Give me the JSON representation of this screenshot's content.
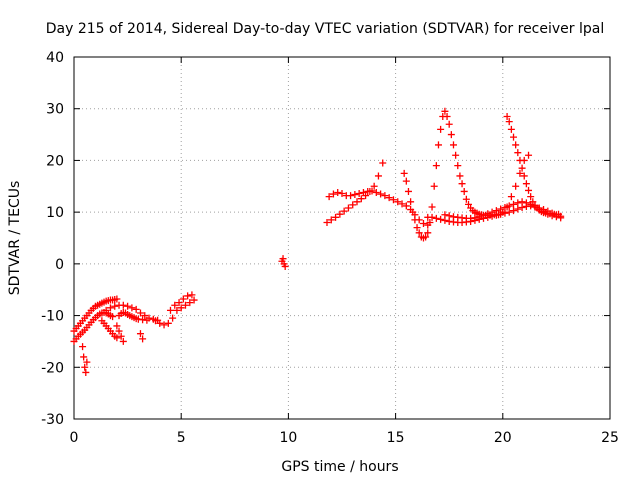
{
  "chart_data": {
    "type": "scatter",
    "title": "Day 215 of 2014, Sidereal Day-to-day VTEC variation (SDTVAR) for receiver lpal",
    "xlabel": "GPS time / hours",
    "ylabel": "SDTVAR / TECUs",
    "xlim": [
      0,
      25
    ],
    "ylim": [
      -30,
      40
    ],
    "xticks": [
      "0",
      "5",
      "10",
      "15",
      "20",
      "25"
    ],
    "yticks": [
      "-30",
      "-20",
      "-10",
      "0",
      "10",
      "20",
      "30",
      "40"
    ],
    "grid": true,
    "marker": "plus",
    "color": "#ff0000",
    "series": [
      {
        "name": "SDTVAR",
        "x": [
          0.0,
          0.1,
          0.2,
          0.3,
          0.4,
          0.5,
          0.6,
          0.7,
          0.8,
          0.9,
          1.0,
          1.1,
          1.2,
          1.3,
          1.4,
          1.5,
          1.6,
          1.7,
          1.8,
          1.9,
          2.0,
          0.0,
          0.1,
          0.2,
          0.3,
          0.4,
          0.5,
          0.6,
          0.7,
          0.8,
          0.9,
          1.0,
          1.1,
          1.2,
          1.3,
          1.4,
          1.5,
          1.6,
          1.7,
          1.8,
          1.3,
          1.4,
          1.5,
          1.6,
          1.7,
          1.8,
          1.9,
          2.0,
          2.1,
          2.2,
          2.3,
          2.4,
          2.5,
          2.6,
          2.7,
          2.8,
          2.9,
          3.0,
          3.2,
          3.4,
          1.5,
          1.7,
          1.9,
          2.1,
          2.3,
          2.5,
          2.7,
          2.9,
          3.1,
          3.3,
          3.5,
          3.7,
          3.9,
          0.4,
          0.45,
          0.5,
          0.55,
          0.6,
          2.0,
          2.1,
          2.2,
          2.3,
          3.1,
          3.2,
          3.8,
          4.0,
          4.2,
          4.4,
          4.6,
          4.8,
          5.0,
          5.2,
          5.4,
          5.6,
          4.5,
          4.7,
          4.9,
          5.1,
          5.3,
          5.5,
          9.7,
          9.75,
          9.8,
          9.85,
          11.8,
          12.0,
          12.2,
          12.4,
          12.6,
          12.8,
          13.0,
          13.2,
          13.4,
          13.6,
          13.8,
          14.0,
          14.2,
          14.4,
          11.9,
          12.1,
          12.3,
          12.5,
          12.7,
          12.9,
          13.1,
          13.3,
          13.5,
          13.7,
          13.9,
          14.1,
          14.3,
          14.5,
          14.7,
          14.9,
          15.1,
          15.3,
          15.5,
          15.7,
          15.9,
          16.1,
          16.3,
          16.5,
          15.4,
          15.5,
          15.6,
          15.7,
          15.8,
          15.9,
          16.0,
          16.1,
          16.2,
          16.3,
          16.4,
          16.5,
          16.6,
          16.7,
          16.8,
          16.9,
          17.0,
          17.1,
          17.2,
          17.3,
          17.4,
          17.5,
          17.6,
          17.7,
          17.8,
          17.9,
          18.0,
          18.1,
          18.2,
          18.3,
          18.4,
          18.5,
          18.6,
          18.7,
          18.8,
          18.9,
          19.0,
          19.2,
          19.4,
          19.6,
          19.8,
          20.0,
          16.5,
          16.7,
          16.9,
          17.1,
          17.3,
          17.5,
          17.7,
          17.9,
          18.1,
          18.3,
          18.5,
          18.7,
          18.9,
          19.1,
          19.3,
          19.5,
          19.7,
          19.9,
          20.1,
          20.3,
          20.5,
          20.7,
          20.9,
          21.1,
          21.3,
          21.5,
          21.7,
          21.9,
          22.1,
          22.3,
          22.5,
          22.7,
          17.3,
          17.5,
          17.7,
          17.9,
          18.1,
          18.3,
          18.5,
          18.7,
          18.9,
          19.1,
          19.3,
          19.5,
          19.7,
          19.9,
          20.1,
          20.3,
          20.5,
          20.7,
          20.9,
          21.1,
          21.3,
          21.5,
          21.7,
          21.9,
          22.1,
          22.3,
          22.5,
          22.7,
          20.2,
          20.3,
          20.4,
          20.5,
          20.6,
          20.7,
          20.8,
          20.9,
          21.0,
          21.1,
          21.2,
          21.3,
          21.4,
          21.5,
          21.6,
          21.7,
          21.8,
          21.9,
          22.0,
          22.2,
          22.4,
          22.6,
          19.8,
          20.0,
          20.2,
          20.4,
          20.6,
          20.8,
          21.0,
          21.2
        ],
        "y": [
          -13,
          -12.5,
          -12,
          -11.5,
          -11,
          -10.5,
          -10,
          -9.5,
          -9,
          -8.6,
          -8.2,
          -8,
          -7.8,
          -7.6,
          -7.4,
          -7.2,
          -7.1,
          -7,
          -7,
          -6.9,
          -6.8,
          -15,
          -14.5,
          -14,
          -13.6,
          -13.2,
          -12.8,
          -12.3,
          -11.8,
          -11.3,
          -10.8,
          -10.4,
          -10,
          -9.7,
          -9.5,
          -9.4,
          -9.5,
          -9.7,
          -10,
          -10.2,
          -11,
          -11.5,
          -12,
          -12.5,
          -13,
          -13.5,
          -14,
          -14.3,
          -10,
          -9.6,
          -9.4,
          -9.5,
          -9.8,
          -10,
          -10.2,
          -10.4,
          -10.6,
          -10.7,
          -10.8,
          -10.9,
          -9,
          -8.5,
          -8.2,
          -8,
          -8,
          -8.2,
          -8.5,
          -8.8,
          -9.5,
          -10,
          -10.5,
          -10.7,
          -10.9,
          -16,
          -18,
          -20,
          -21,
          -19,
          -12,
          -13,
          -14,
          -15,
          -13.5,
          -14.5,
          -11,
          -11.5,
          -11.8,
          -11.5,
          -10.5,
          -9,
          -8.5,
          -8,
          -7.5,
          -7,
          -9,
          -8,
          -7.5,
          -6.8,
          -6.2,
          -6,
          0.5,
          1,
          0,
          -0.5,
          8,
          8.5,
          9,
          9.6,
          10.2,
          10.8,
          11.4,
          12,
          12.6,
          13.2,
          14,
          15,
          17,
          19.5,
          13,
          13.5,
          13.8,
          13.6,
          13.2,
          13.2,
          13.4,
          13.6,
          13.8,
          14,
          14.1,
          13.8,
          13.5,
          13.2,
          12.8,
          12.4,
          12,
          11.6,
          11.2,
          10.5,
          9.5,
          8.5,
          7.8,
          7.5,
          17.5,
          16,
          14,
          12,
          10,
          8.5,
          7,
          6,
          5.2,
          5,
          5.2,
          6,
          8,
          11,
          15,
          19,
          23,
          26,
          28.5,
          29.5,
          28.5,
          27,
          25,
          23,
          21,
          19,
          17,
          15.5,
          14,
          12.5,
          11.5,
          10.8,
          10.3,
          10,
          9.8,
          9.6,
          9.5,
          9.4,
          9.4,
          9.5,
          9.6,
          10,
          9,
          9,
          8.8,
          8.6,
          8.4,
          8.2,
          8.1,
          8,
          8,
          8.1,
          8.2,
          8.4,
          8.6,
          8.8,
          9,
          9.2,
          9.4,
          9.6,
          9.8,
          10,
          10.3,
          10.6,
          10.9,
          11.1,
          11.2,
          11,
          10.8,
          10.5,
          10.2,
          9.8,
          9.5,
          9.2,
          9.5,
          9.3,
          9.1,
          9,
          8.9,
          8.8,
          8.8,
          8.9,
          9.1,
          9.4,
          9.7,
          10,
          10.3,
          10.6,
          10.9,
          11.2,
          11.5,
          11.8,
          12,
          11.8,
          11.5,
          11,
          10.5,
          10,
          9.6,
          9.3,
          9.1,
          8.9,
          28.5,
          27.5,
          26,
          24.5,
          23,
          21.5,
          20,
          18.5,
          17,
          15.5,
          14.2,
          13,
          12,
          11.3,
          10.8,
          10.4,
          10.1,
          9.9,
          9.8,
          9.7,
          9.6,
          9.6,
          9.5,
          10,
          11,
          13,
          15,
          17.5,
          20,
          21
        ]
      }
    ]
  }
}
